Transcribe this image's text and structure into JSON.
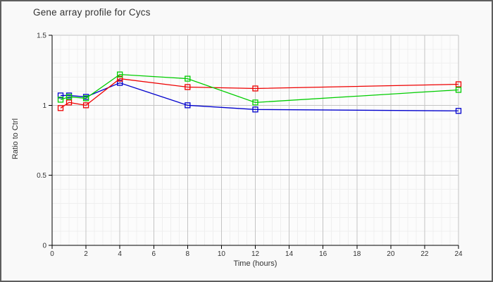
{
  "window": {
    "background": "#f9f9f9",
    "border_color": "#5e5e5e"
  },
  "colors": {
    "plot_bg": "#fcfcfc",
    "major_grid": "#c4c4c4",
    "minor_grid": "#efefef",
    "axis": "#000000",
    "tick_label": "#333333"
  },
  "chart_data": {
    "type": "line",
    "title": "Gene array profile for Cycs",
    "xlabel": "Time (hours)",
    "ylabel": "Ratio to Ctrl",
    "x": [
      0.5,
      1,
      2,
      4,
      8,
      12,
      24
    ],
    "series": [
      {
        "name": "blue",
        "color": "#0000cd",
        "marker": "open-square",
        "values": [
          1.07,
          1.07,
          1.06,
          1.16,
          1.0,
          0.97,
          0.96
        ]
      },
      {
        "name": "red",
        "color": "#ee0000",
        "marker": "open-square",
        "values": [
          0.98,
          1.02,
          1.0,
          1.19,
          1.13,
          1.12,
          1.15
        ]
      },
      {
        "name": "green",
        "color": "#00cd00",
        "marker": "open-square",
        "values": [
          1.04,
          1.06,
          1.05,
          1.22,
          1.19,
          1.02,
          1.11
        ]
      }
    ],
    "xlim": [
      0,
      24
    ],
    "ylim": [
      0,
      1.5
    ],
    "x_ticks": [
      0,
      2,
      4,
      6,
      8,
      10,
      12,
      14,
      16,
      18,
      20,
      22,
      24
    ],
    "y_ticks": [
      0,
      0.5,
      1,
      1.5
    ],
    "x_minor_step": 0.5,
    "y_minor_step": 0.1,
    "grid": "major+minor",
    "legend": "none"
  }
}
